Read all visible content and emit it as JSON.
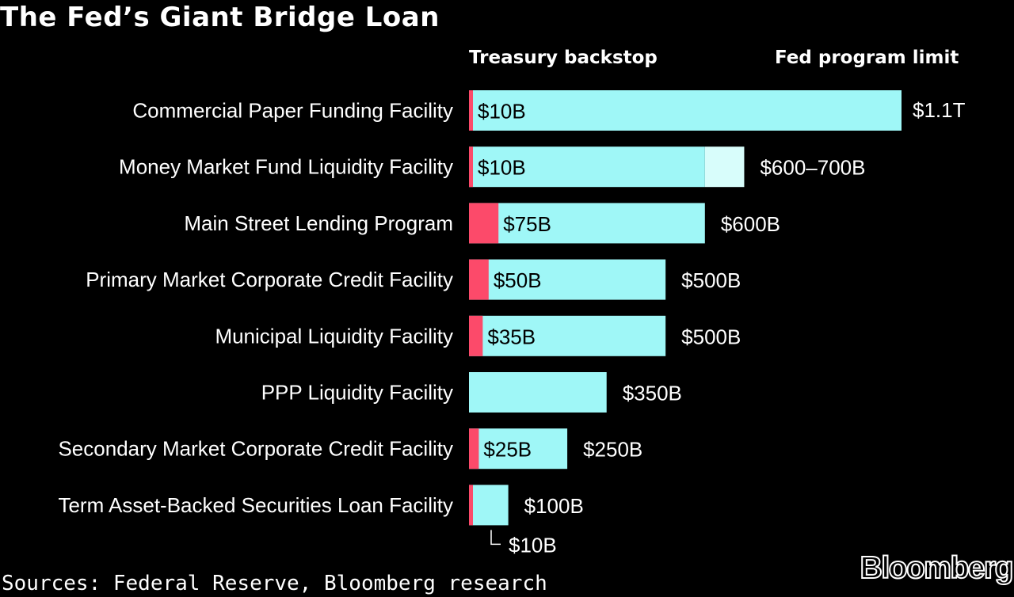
{
  "colors": {
    "background": "#000000",
    "text": "#ffffff",
    "treasury_backstop": "#fc4a6a",
    "fed_program_limit": "#9ff7f7",
    "limit_range": "#d8fdfb"
  },
  "chart_data": {
    "type": "bar",
    "orientation": "horizontal",
    "stacked": true,
    "title": "The Fed’s Giant Bridge Loan",
    "source": "Sources: Federal Reserve, Bloomberg research",
    "brand": "Bloomberg",
    "unit": "billions of dollars",
    "xlim": [
      0,
      1100
    ],
    "grid": false,
    "legend": "column headers above bars",
    "series_headers": {
      "treasury_backstop": "Treasury backstop",
      "fed_program_limit": "Fed program limit"
    },
    "categories": [
      "Commercial Paper Funding Facility",
      "Money Market Fund Liquidity Facility",
      "Main Street Lending Program",
      "Primary Market Corporate Credit Facility",
      "Municipal Liquidity Facility",
      "PPP Liquidity Facility",
      "Secondary Market Corporate Credit Facility",
      "Term Asset-Backed Securities Loan Facility"
    ],
    "treasury_backstop": [
      10,
      10,
      75,
      50,
      35,
      null,
      25,
      10
    ],
    "treasury_labels": [
      "$10B",
      "$10B",
      "$75B",
      "$50B",
      "$35B",
      "",
      "$25B",
      "$10B"
    ],
    "fed_program_limit_low": [
      1100,
      600,
      600,
      500,
      500,
      350,
      250,
      100
    ],
    "fed_program_limit_high": [
      1100,
      700,
      600,
      500,
      500,
      350,
      250,
      100
    ],
    "limit_labels": [
      "$1.1T",
      "$600–700B",
      "$600B",
      "$500B",
      "$500B",
      "$350B",
      "$250B",
      "$100B"
    ]
  }
}
